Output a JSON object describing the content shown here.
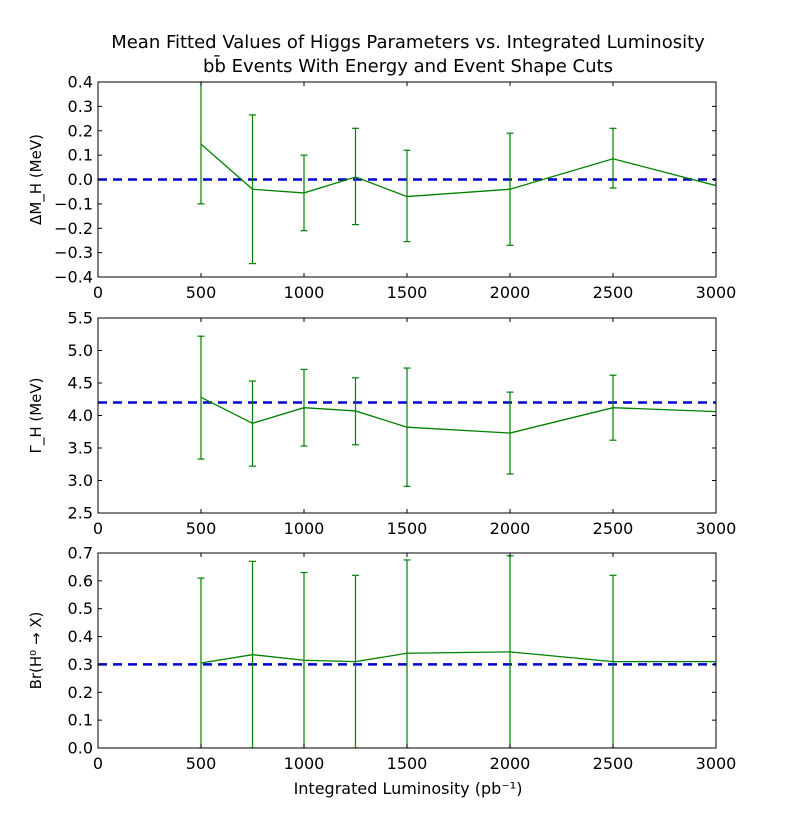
{
  "figure": {
    "title_line1": "Mean Fitted Values of Higgs Parameters vs. Integrated Luminosity",
    "title_line2": "bb̄ Events With Energy and Event Shape Cuts",
    "xlabel": "Integrated Luminosity (pb⁻¹)"
  },
  "colors": {
    "series": "#008000",
    "reference": "#0000cc",
    "axes": "#000000"
  },
  "chart_data": [
    {
      "type": "line",
      "ylabel": "ΔM_H (MeV)",
      "xlim": [
        0,
        3000
      ],
      "ylim": [
        -0.4,
        0.4
      ],
      "x_ticks": [
        0,
        500,
        1000,
        1500,
        2000,
        2500,
        3000
      ],
      "y_ticks": [
        -0.4,
        -0.3,
        -0.2,
        -0.1,
        0.0,
        0.1,
        0.2,
        0.3,
        0.4
      ],
      "y_tick_labels": [
        "−0.4",
        "−0.3",
        "−0.2",
        "−0.1",
        "0.0",
        "0.1",
        "0.2",
        "0.3",
        "0.4"
      ],
      "reference_line": 0.0,
      "x": [
        500,
        750,
        1000,
        1250,
        1500,
        2000,
        2500,
        3000
      ],
      "y": [
        0.145,
        -0.04,
        -0.055,
        0.01,
        -0.07,
        -0.04,
        0.085,
        -0.025
      ],
      "err_low": [
        -0.1,
        -0.345,
        -0.21,
        -0.185,
        -0.255,
        -0.27,
        -0.035,
        null
      ],
      "err_high": [
        0.4,
        0.265,
        0.1,
        0.21,
        0.12,
        0.19,
        0.21,
        null
      ]
    },
    {
      "type": "line",
      "ylabel": "Γ_H (MeV)",
      "xlim": [
        0,
        3000
      ],
      "ylim": [
        2.5,
        5.5
      ],
      "x_ticks": [
        0,
        500,
        1000,
        1500,
        2000,
        2500,
        3000
      ],
      "y_ticks": [
        2.5,
        3.0,
        3.5,
        4.0,
        4.5,
        5.0,
        5.5
      ],
      "y_tick_labels": [
        "2.5",
        "3.0",
        "3.5",
        "4.0",
        "4.5",
        "5.0",
        "5.5"
      ],
      "reference_line": 4.2,
      "x": [
        500,
        750,
        1000,
        1250,
        1500,
        2000,
        2500,
        3000
      ],
      "y": [
        4.28,
        3.88,
        4.12,
        4.07,
        3.82,
        3.73,
        4.12,
        4.06
      ],
      "err_low": [
        3.33,
        3.22,
        3.53,
        3.55,
        2.91,
        3.1,
        3.62,
        null
      ],
      "err_high": [
        5.22,
        4.53,
        4.71,
        4.58,
        4.73,
        4.36,
        4.62,
        null
      ]
    },
    {
      "type": "line",
      "ylabel": "Br(H⁰ → X)",
      "xlim": [
        0,
        3000
      ],
      "ylim": [
        0.0,
        0.7
      ],
      "x_ticks": [
        0,
        500,
        1000,
        1500,
        2000,
        2500,
        3000
      ],
      "y_ticks": [
        0.0,
        0.1,
        0.2,
        0.3,
        0.4,
        0.5,
        0.6,
        0.7
      ],
      "y_tick_labels": [
        "0.0",
        "0.1",
        "0.2",
        "0.3",
        "0.4",
        "0.5",
        "0.6",
        "0.7"
      ],
      "reference_line": 0.3,
      "x": [
        500,
        750,
        1000,
        1250,
        1500,
        2000,
        2500,
        3000
      ],
      "y": [
        0.305,
        0.335,
        0.315,
        0.31,
        0.34,
        0.345,
        0.31,
        0.31
      ],
      "err_low": [
        0.0,
        0.0,
        0.0,
        0.0,
        0.0,
        0.0,
        0.0,
        null
      ],
      "err_high": [
        0.61,
        0.67,
        0.63,
        0.62,
        0.675,
        0.69,
        0.62,
        null
      ]
    }
  ]
}
